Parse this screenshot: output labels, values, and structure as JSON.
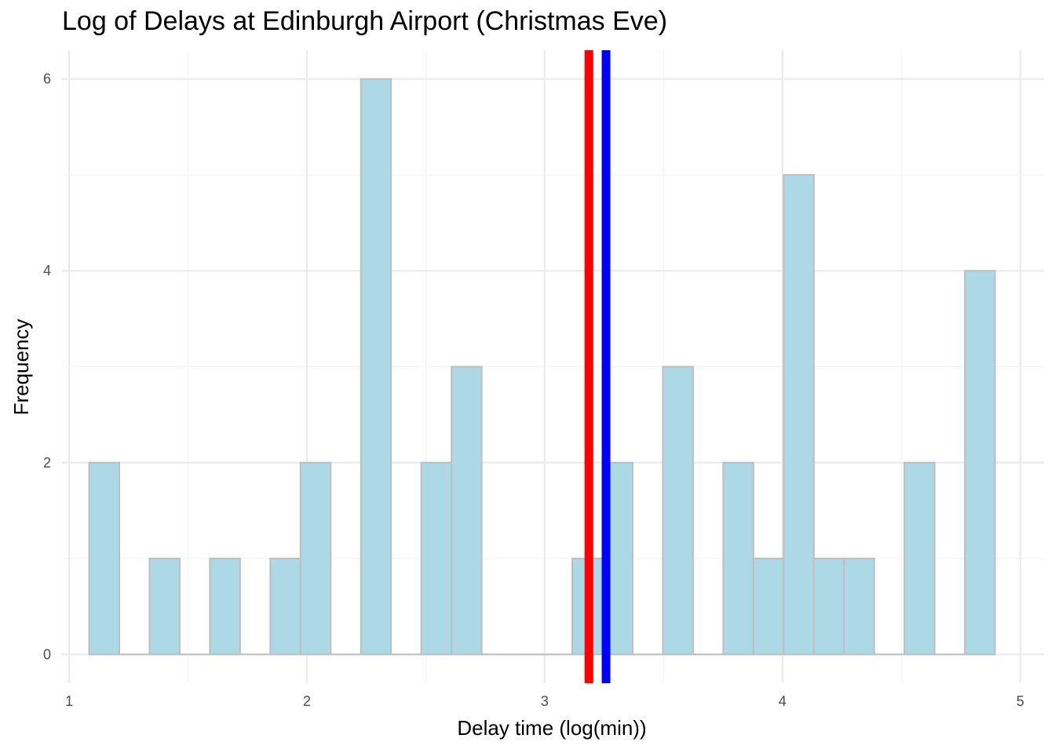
{
  "chart_data": {
    "type": "bar",
    "title": "Log of Delays at Edinburgh Airport (Christmas Eve)",
    "xlabel": "Delay time (log(min))",
    "ylabel": "Frequency",
    "xlim": [
      0.97,
      5.1
    ],
    "ylim": [
      -0.3,
      6.3
    ],
    "x_ticks": [
      "1",
      "2",
      "3",
      "4",
      "5"
    ],
    "y_ticks": [
      "0",
      "2",
      "4",
      "6"
    ],
    "grid": true,
    "bin_width": 0.127,
    "bins": [
      {
        "start": 1.084,
        "end": 1.211,
        "count": 2
      },
      {
        "start": 1.211,
        "end": 1.338,
        "count": 0
      },
      {
        "start": 1.338,
        "end": 1.465,
        "count": 1
      },
      {
        "start": 1.465,
        "end": 1.592,
        "count": 0
      },
      {
        "start": 1.592,
        "end": 1.719,
        "count": 1
      },
      {
        "start": 1.719,
        "end": 1.846,
        "count": 0
      },
      {
        "start": 1.846,
        "end": 1.973,
        "count": 1
      },
      {
        "start": 1.973,
        "end": 2.1,
        "count": 2
      },
      {
        "start": 2.1,
        "end": 2.227,
        "count": 0
      },
      {
        "start": 2.227,
        "end": 2.354,
        "count": 6
      },
      {
        "start": 2.354,
        "end": 2.481,
        "count": 0
      },
      {
        "start": 2.481,
        "end": 2.608,
        "count": 2
      },
      {
        "start": 2.608,
        "end": 2.735,
        "count": 3
      },
      {
        "start": 2.735,
        "end": 2.862,
        "count": 0
      },
      {
        "start": 2.862,
        "end": 2.989,
        "count": 0
      },
      {
        "start": 2.989,
        "end": 3.116,
        "count": 0
      },
      {
        "start": 3.116,
        "end": 3.243,
        "count": 1
      },
      {
        "start": 3.243,
        "end": 3.37,
        "count": 2
      },
      {
        "start": 3.37,
        "end": 3.497,
        "count": 0
      },
      {
        "start": 3.497,
        "end": 3.624,
        "count": 3
      },
      {
        "start": 3.624,
        "end": 3.751,
        "count": 0
      },
      {
        "start": 3.751,
        "end": 3.878,
        "count": 2
      },
      {
        "start": 3.878,
        "end": 4.005,
        "count": 1
      },
      {
        "start": 4.005,
        "end": 4.132,
        "count": 5
      },
      {
        "start": 4.132,
        "end": 4.259,
        "count": 1
      },
      {
        "start": 4.259,
        "end": 4.386,
        "count": 1
      },
      {
        "start": 4.386,
        "end": 4.513,
        "count": 0
      },
      {
        "start": 4.513,
        "end": 4.64,
        "count": 2
      },
      {
        "start": 4.64,
        "end": 4.767,
        "count": 0
      },
      {
        "start": 4.767,
        "end": 4.894,
        "count": 4
      }
    ],
    "reference_lines": [
      {
        "x": 3.186,
        "color": "#ff0000"
      },
      {
        "x": 3.258,
        "color": "#0000ff"
      }
    ],
    "colors": {
      "bar_fill": "#add8e6",
      "bar_stroke": "#bebebe",
      "grid_major": "#ebebeb",
      "grid_minor": "#f4f4f4"
    }
  }
}
